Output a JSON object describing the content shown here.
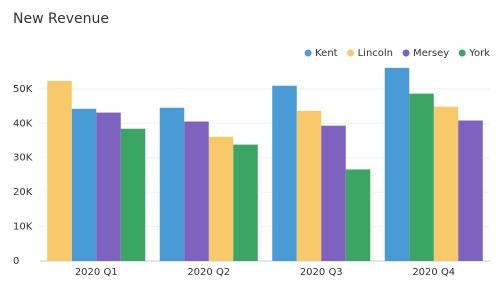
{
  "chart_data": {
    "type": "bar",
    "title": "New Revenue",
    "categories": [
      "2020 Q1",
      "2020 Q2",
      "2020 Q3",
      "2020 Q4"
    ],
    "series": [
      {
        "name": "Kent",
        "color": "#4a9ad6",
        "values": [
          44200,
          44500,
          50900,
          56100
        ]
      },
      {
        "name": "Lincoln",
        "color": "#f7c96a",
        "values": [
          52300,
          36100,
          43600,
          44800
        ]
      },
      {
        "name": "Mersey",
        "color": "#7d62bf",
        "values": [
          43100,
          40500,
          39300,
          40800
        ]
      },
      {
        "name": "York",
        "color": "#3aa564",
        "values": [
          38400,
          33800,
          26600,
          48600
        ]
      }
    ],
    "ylim": [
      0,
      57500
    ],
    "yticks": [
      0,
      {
        "value": 10000,
        "label": "10K"
      },
      {
        "value": 20000,
        "label": "20K"
      },
      {
        "value": 30000,
        "label": "30K"
      },
      {
        "value": 40000,
        "label": "40K"
      },
      {
        "value": 50000,
        "label": "50K"
      }
    ],
    "grid": true,
    "legend": "top-right"
  }
}
